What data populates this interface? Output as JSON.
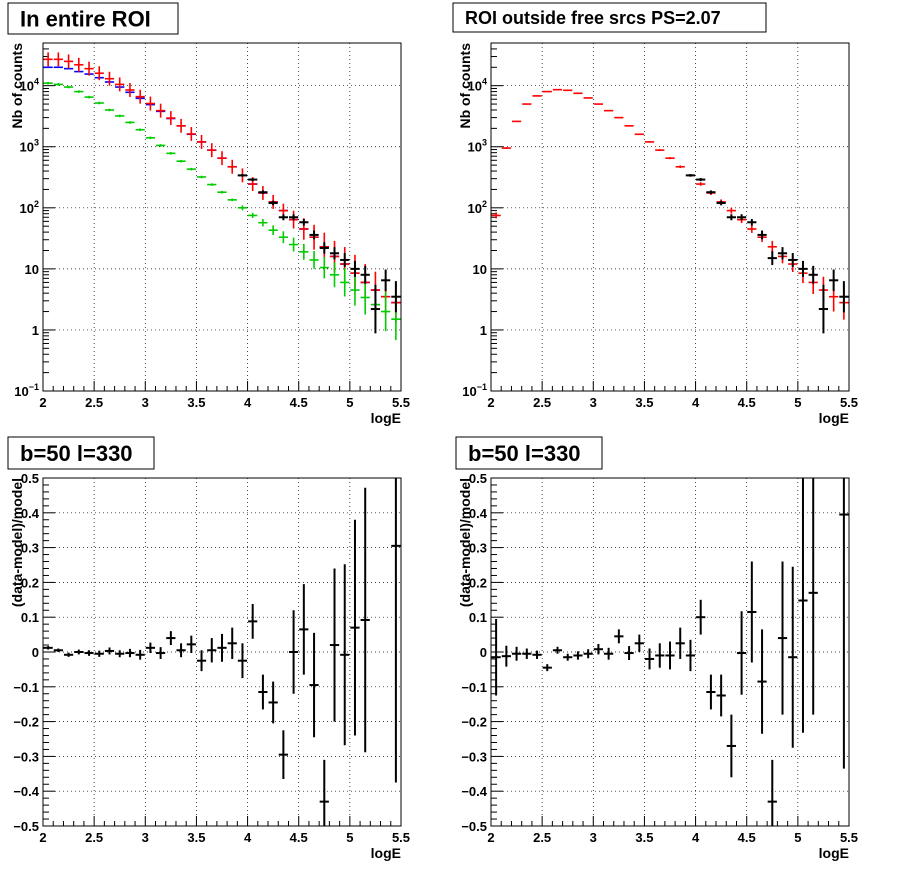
{
  "chart_data": [
    {
      "type": "scatter",
      "title": "In entire ROI",
      "xlabel": "logE",
      "ylabel": "Nb of counts",
      "xlim": [
        2,
        5.5
      ],
      "ylim": [
        0.1,
        50000
      ],
      "yscale": "log",
      "grid": true,
      "x_ticks": [
        "2",
        "2.5",
        "3",
        "3.5",
        "4",
        "4.5",
        "5",
        "5.5"
      ],
      "y_ticks": [
        {
          "value": 0.1,
          "base": "10",
          "exp": "−1"
        },
        {
          "value": 1,
          "text": "1"
        },
        {
          "value": 10,
          "text": "10"
        },
        {
          "value": 100,
          "base": "10",
          "exp": "2"
        },
        {
          "value": 1000,
          "base": "10",
          "exp": "3"
        },
        {
          "value": 10000,
          "base": "10",
          "exp": "4"
        }
      ],
      "series": [
        {
          "color": "#0000ff",
          "x": [
            2.05,
            2.15,
            2.25,
            2.35,
            2.45,
            2.55,
            2.65,
            2.75,
            2.85,
            2.95,
            3.05,
            3.15,
            3.25,
            3.35,
            3.45,
            3.55,
            3.65,
            3.75,
            3.85,
            3.95,
            4.05,
            4.15,
            4.25,
            4.35,
            4.45,
            4.55,
            4.65,
            4.75,
            4.85,
            4.95,
            5.05,
            5.15,
            5.25,
            5.35,
            5.45
          ],
          "y": [
            20000,
            20000,
            19000,
            17000,
            15500,
            13500,
            11500,
            9500,
            7800,
            6200,
            4900,
            3800,
            2900,
            2200,
            1600,
            1200,
            880,
            650,
            470,
            340,
            245,
            175,
            125,
            90,
            64,
            45,
            33,
            23,
            16,
            12,
            8.5,
            6,
            4.5,
            3.5,
            2.8
          ]
        },
        {
          "color": "#ff0000",
          "x": [
            2.05,
            2.15,
            2.25,
            2.35,
            2.45,
            2.55,
            2.65,
            2.75,
            2.85,
            2.95,
            3.05,
            3.15,
            3.25,
            3.35,
            3.45,
            3.55,
            3.65,
            3.75,
            3.85,
            3.95,
            4.05,
            4.15,
            4.25,
            4.35,
            4.45,
            4.55,
            4.65,
            4.75,
            4.85,
            4.95,
            5.05,
            5.15,
            5.25,
            5.35,
            5.45
          ],
          "y": [
            27000,
            27000,
            25000,
            22000,
            19000,
            16000,
            13000,
            10500,
            8500,
            6600,
            5100,
            3900,
            2950,
            2200,
            1620,
            1200,
            880,
            650,
            470,
            340,
            245,
            175,
            125,
            90,
            64,
            45,
            33,
            23,
            16,
            12,
            8.5,
            6,
            4.5,
            3.5,
            2.8
          ],
          "err": [
            1.3,
            1.3,
            1.3,
            1.3,
            1.3,
            1.3,
            1.3,
            1.3,
            1.3,
            1.3,
            1.3,
            1.3,
            1.3,
            1.3,
            1.3,
            1.3,
            1.3,
            1.3,
            1.3,
            1.3,
            1.3,
            1.3,
            1.3,
            1.3,
            1.4,
            1.5,
            1.6,
            1.7,
            1.8,
            1.9,
            2.0,
            2.0,
            2.0,
            2.0,
            2.1
          ]
        },
        {
          "color": "#00cc00",
          "x": [
            2.05,
            2.15,
            2.25,
            2.35,
            2.45,
            2.55,
            2.65,
            2.75,
            2.85,
            2.95,
            3.05,
            3.15,
            3.25,
            3.35,
            3.45,
            3.55,
            3.65,
            3.75,
            3.85,
            3.95,
            4.05,
            4.15,
            4.25,
            4.35,
            4.45,
            4.55,
            4.65,
            4.75,
            4.85,
            4.95,
            5.05,
            5.15,
            5.25,
            5.35,
            5.45
          ],
          "y": [
            11000,
            10500,
            9500,
            8000,
            6500,
            5200,
            4000,
            3200,
            2500,
            1900,
            1400,
            1050,
            780,
            580,
            430,
            320,
            240,
            180,
            135,
            100,
            75,
            57,
            43,
            33,
            25,
            19,
            14,
            10.5,
            8,
            6,
            4.5,
            3.4,
            2.6,
            2.0,
            1.5
          ],
          "err": [
            1.05,
            1.05,
            1.05,
            1.05,
            1.05,
            1.05,
            1.05,
            1.05,
            1.05,
            1.05,
            1.05,
            1.05,
            1.05,
            1.05,
            1.05,
            1.05,
            1.05,
            1.05,
            1.05,
            1.1,
            1.1,
            1.15,
            1.2,
            1.25,
            1.3,
            1.35,
            1.4,
            1.5,
            1.6,
            1.7,
            1.8,
            1.9,
            2.0,
            2.1,
            2.2
          ]
        },
        {
          "color": "#000000",
          "x": [
            3.95,
            4.05,
            4.15,
            4.25,
            4.35,
            4.45,
            4.55,
            4.65,
            4.75,
            4.85,
            4.95,
            5.05,
            5.15,
            5.25,
            5.35,
            5.45
          ],
          "y": [
            340,
            290,
            180,
            120,
            70,
            70,
            58,
            36,
            22,
            18,
            14,
            10,
            8,
            2.2,
            6.5,
            3.5
          ],
          "err": [
            1.05,
            1.06,
            1.07,
            1.09,
            1.12,
            1.12,
            1.13,
            1.18,
            1.24,
            1.26,
            1.3,
            1.35,
            1.4,
            2.5,
            1.5,
            1.8
          ]
        }
      ]
    },
    {
      "type": "scatter",
      "title": "ROI outside free srcs PS=2.07",
      "xlabel": "logE",
      "ylabel": "Nb of counts",
      "xlim": [
        2,
        5.5
      ],
      "ylim": [
        0.1,
        50000
      ],
      "yscale": "log",
      "grid": true,
      "x_ticks": [
        "2",
        "2.5",
        "3",
        "3.5",
        "4",
        "4.5",
        "5",
        "5.5"
      ],
      "y_ticks": [
        {
          "value": 0.1,
          "base": "10",
          "exp": "−1"
        },
        {
          "value": 1,
          "text": "1"
        },
        {
          "value": 10,
          "text": "10"
        },
        {
          "value": 100,
          "base": "10",
          "exp": "2"
        },
        {
          "value": 1000,
          "base": "10",
          "exp": "3"
        },
        {
          "value": 10000,
          "base": "10",
          "exp": "4"
        }
      ],
      "series": [
        {
          "color": "#ff0000",
          "x": [
            2.05,
            2.15,
            2.25,
            2.35,
            2.45,
            2.55,
            2.65,
            2.75,
            2.85,
            2.95,
            3.05,
            3.15,
            3.25,
            3.35,
            3.45,
            3.55,
            3.65,
            3.75,
            3.85,
            3.95,
            4.05,
            4.15,
            4.25,
            4.35,
            4.45,
            4.55,
            4.65,
            4.75,
            4.85,
            4.95,
            5.05,
            5.15,
            5.25,
            5.35,
            5.45
          ],
          "y": [
            75,
            950,
            2600,
            5000,
            6800,
            8000,
            8600,
            8400,
            7500,
            6300,
            5000,
            3900,
            3000,
            2200,
            1600,
            1200,
            880,
            650,
            470,
            340,
            245,
            175,
            125,
            90,
            64,
            45,
            33,
            23,
            16,
            12,
            8.5,
            6,
            4.5,
            3.5,
            2.8
          ],
          "err": [
            1.12,
            1.03,
            1.02,
            1.015,
            1.012,
            1.011,
            1.011,
            1.011,
            1.012,
            1.013,
            1.015,
            1.016,
            1.02,
            1.02,
            1.025,
            1.03,
            1.035,
            1.04,
            1.05,
            1.05,
            1.07,
            1.08,
            1.1,
            1.12,
            1.14,
            1.16,
            1.2,
            1.25,
            1.3,
            1.35,
            1.45,
            1.55,
            1.65,
            1.75,
            1.9
          ]
        },
        {
          "color": "#000000",
          "x": [
            3.95,
            4.05,
            4.15,
            4.25,
            4.35,
            4.45,
            4.55,
            4.65,
            4.75,
            4.85,
            4.95,
            5.05,
            5.15,
            5.25,
            5.35,
            5.45
          ],
          "y": [
            340,
            290,
            180,
            120,
            70,
            70,
            58,
            36,
            15,
            18,
            14,
            10,
            8,
            2.2,
            6.5,
            3.5
          ],
          "err": [
            1.05,
            1.06,
            1.07,
            1.09,
            1.12,
            1.12,
            1.13,
            1.18,
            1.3,
            1.26,
            1.3,
            1.35,
            1.4,
            2.5,
            1.5,
            1.8
          ]
        }
      ]
    },
    {
      "type": "scatter",
      "title": "b=50 l=330",
      "xlabel": "logE",
      "ylabel": "(data-model)/model",
      "xlim": [
        2,
        5.5
      ],
      "ylim": [
        -0.5,
        0.5
      ],
      "yscale": "linear",
      "grid": true,
      "x_ticks": [
        "2",
        "2.5",
        "3",
        "3.5",
        "4",
        "4.5",
        "5",
        "5.5"
      ],
      "y_ticks": [
        "−0.5",
        "−0.4",
        "−0.3",
        "−0.2",
        "−0.1",
        "0",
        "0.1",
        "0.2",
        "0.3",
        "0.4",
        "0.5"
      ],
      "series": [
        {
          "color": "#000000",
          "x": [
            2.05,
            2.15,
            2.25,
            2.35,
            2.45,
            2.55,
            2.65,
            2.75,
            2.85,
            2.95,
            3.05,
            3.15,
            3.25,
            3.35,
            3.45,
            3.55,
            3.65,
            3.75,
            3.85,
            3.95,
            4.05,
            4.15,
            4.25,
            4.35,
            4.45,
            4.55,
            4.65,
            4.75,
            4.85,
            4.95,
            5.05,
            5.15,
            5.25,
            5.35,
            5.45
          ],
          "y": [
            0.012,
            0.005,
            -0.008,
            0.0,
            -0.003,
            -0.005,
            0.003,
            -0.005,
            -0.003,
            -0.008,
            0.012,
            -0.003,
            0.04,
            0.005,
            0.022,
            -0.025,
            0.005,
            0.012,
            0.025,
            -0.025,
            0.088,
            -0.115,
            -0.145,
            -0.295,
            0.0,
            0.065,
            -0.095,
            -0.43,
            0.02,
            -0.008,
            0.07,
            0.092,
            0.0,
            0.0,
            0.305
          ],
          "yerr": [
            0.005,
            0.005,
            0.006,
            0.007,
            0.008,
            0.009,
            0.01,
            0.01,
            0.012,
            0.014,
            0.015,
            0.017,
            0.02,
            0.02,
            0.025,
            0.03,
            0.035,
            0.04,
            0.045,
            0.05,
            0.05,
            0.05,
            0.06,
            0.07,
            0.12,
            0.13,
            0.15,
            0.12,
            0.22,
            0.26,
            0.31,
            0.38,
            0.0,
            0.0,
            0.68
          ],
          "drawn": [
            true,
            true,
            true,
            true,
            true,
            true,
            true,
            true,
            true,
            true,
            true,
            true,
            true,
            true,
            true,
            true,
            true,
            true,
            true,
            true,
            true,
            true,
            true,
            true,
            true,
            true,
            true,
            true,
            true,
            true,
            true,
            true,
            false,
            false,
            true
          ]
        }
      ]
    },
    {
      "type": "scatter",
      "title": "b=50 l=330",
      "xlabel": "logE",
      "ylabel": "(data-model)/model",
      "xlim": [
        2,
        5.5
      ],
      "ylim": [
        -0.5,
        0.5
      ],
      "yscale": "linear",
      "grid": true,
      "x_ticks": [
        "2",
        "2.5",
        "3",
        "3.5",
        "4",
        "4.5",
        "5",
        "5.5"
      ],
      "y_ticks": [
        "−0.5",
        "−0.4",
        "−0.3",
        "−0.2",
        "−0.1",
        "0",
        "0.1",
        "0.2",
        "0.3",
        "0.4",
        "0.5"
      ],
      "series": [
        {
          "color": "#000000",
          "x": [
            2.05,
            2.15,
            2.25,
            2.35,
            2.45,
            2.55,
            2.65,
            2.75,
            2.85,
            2.95,
            3.05,
            3.15,
            3.25,
            3.35,
            3.45,
            3.55,
            3.65,
            3.75,
            3.85,
            3.95,
            4.05,
            4.15,
            4.25,
            4.35,
            4.45,
            4.55,
            4.65,
            4.75,
            4.85,
            4.95,
            5.05,
            5.15,
            5.25,
            5.35,
            5.45
          ],
          "y": [
            -0.015,
            -0.012,
            -0.005,
            -0.005,
            -0.008,
            -0.045,
            0.005,
            -0.015,
            -0.01,
            -0.005,
            0.008,
            -0.005,
            0.045,
            -0.003,
            0.025,
            -0.02,
            -0.01,
            -0.01,
            0.025,
            -0.01,
            0.1,
            -0.115,
            -0.125,
            -0.27,
            -0.003,
            0.115,
            -0.085,
            -0.43,
            0.04,
            -0.015,
            0.148,
            0.17,
            0.0,
            0.0,
            0.395
          ],
          "yerr": [
            0.11,
            0.03,
            0.02,
            0.015,
            0.012,
            0.01,
            0.01,
            0.01,
            0.012,
            0.013,
            0.015,
            0.017,
            0.02,
            0.02,
            0.025,
            0.03,
            0.035,
            0.04,
            0.045,
            0.045,
            0.05,
            0.05,
            0.06,
            0.09,
            0.12,
            0.145,
            0.15,
            0.12,
            0.22,
            0.26,
            0.38,
            0.35,
            0.0,
            0.0,
            0.73
          ],
          "drawn": [
            true,
            true,
            true,
            true,
            true,
            true,
            true,
            true,
            true,
            true,
            true,
            true,
            true,
            true,
            true,
            true,
            true,
            true,
            true,
            true,
            true,
            true,
            true,
            true,
            true,
            true,
            true,
            true,
            true,
            true,
            true,
            true,
            false,
            false,
            true
          ]
        }
      ]
    }
  ]
}
